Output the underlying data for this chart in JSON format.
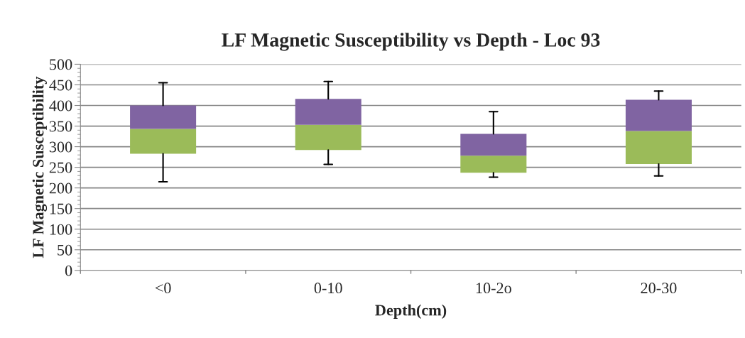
{
  "chart_data": {
    "type": "box",
    "title": "LF Magnetic Susceptibility vs Depth - Loc 93",
    "xlabel": "Depth(cm)",
    "ylabel": "LF Magnetic Susceptibility",
    "categories": [
      "<0",
      "0-10",
      "10-2o",
      "20-30"
    ],
    "colors": [
      [
        "#9bbb59",
        "#8064a2"
      ],
      [
        "#9bbb59",
        "#8064a2"
      ],
      [
        "#9bbb59",
        "#8064a2"
      ],
      [
        "#9bbb59",
        "#8064a2"
      ]
    ],
    "boxes": [
      {
        "low": 215,
        "q1": 283,
        "median": 343,
        "q3": 400,
        "high": 455
      },
      {
        "low": 257,
        "q1": 292,
        "median": 353,
        "q3": 416,
        "high": 458
      },
      {
        "low": 226,
        "q1": 237,
        "median": 278,
        "q3": 331,
        "high": 385
      },
      {
        "low": 229,
        "q1": 258,
        "median": 338,
        "q3": 414,
        "high": 435
      }
    ],
    "ylim": [
      0,
      500
    ],
    "yticks": [
      0,
      50,
      100,
      150,
      200,
      250,
      300,
      350,
      400,
      450,
      500
    ],
    "grid": "y"
  }
}
